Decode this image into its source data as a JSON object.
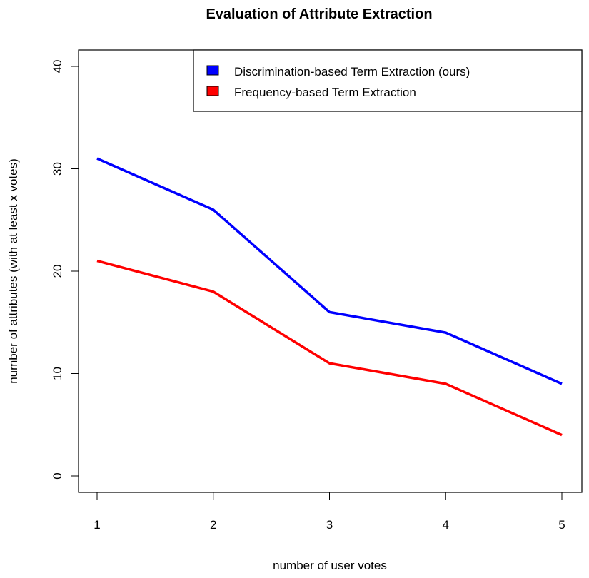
{
  "chart_data": {
    "type": "line",
    "title": "Evaluation of Attribute Extraction",
    "xlabel": "number of user votes",
    "ylabel": "number of attributes (with at least x votes)",
    "x": [
      1,
      2,
      3,
      4,
      5
    ],
    "x_ticks": [
      "1",
      "2",
      "3",
      "4",
      "5"
    ],
    "y_ticks": [
      "0",
      "10",
      "20",
      "30",
      "40"
    ],
    "xlim": [
      1,
      5
    ],
    "ylim": [
      0,
      40
    ],
    "grid": false,
    "legend_position": "top-right",
    "series": [
      {
        "name": "Discrimination-based Term Extraction (ours)",
        "color": "#0000FF",
        "values": [
          31,
          26,
          16,
          14,
          9
        ]
      },
      {
        "name": "Frequency-based Term Extraction",
        "color": "#FF0000",
        "values": [
          21,
          18,
          11,
          9,
          4
        ]
      }
    ]
  }
}
